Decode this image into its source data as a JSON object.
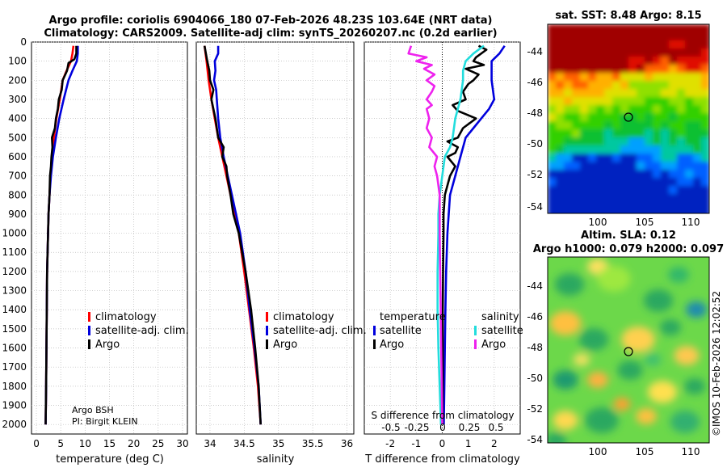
{
  "header": {
    "title_line1": "Argo profile: coriolis 6904066_180 07-Feb-2026 48.23S 103.64E (NRT data)",
    "title_line2": "Climatology: CARS2009. Satellite-adj clim: synTS_20260207.nc (0.2d earlier)"
  },
  "colors": {
    "climatology": "#ff0000",
    "satellite": "#0000dd",
    "argo": "#000000",
    "sat_s": "#22dddd",
    "argo_s": "#ee22ee"
  },
  "depth_axis": {
    "ticks": [
      0,
      100,
      200,
      300,
      400,
      500,
      600,
      700,
      800,
      900,
      1000,
      1100,
      1200,
      1300,
      1400,
      1500,
      1600,
      1700,
      1800,
      1900,
      2000
    ]
  },
  "chart_data": [
    {
      "type": "line",
      "xlabel": "temperature (deg C)",
      "xlim": [
        -1,
        31
      ],
      "xticks": [
        0,
        5,
        10,
        15,
        20,
        25,
        30
      ],
      "ylim": [
        0,
        2050
      ],
      "legend": [
        "climatology",
        "satellite-adj. clim.",
        "Argo"
      ],
      "credit": [
        "Argo BSH",
        "PI: Birgit KLEIN"
      ],
      "series": [
        {
          "name": "climatology",
          "color": "#ff0000",
          "points": [
            [
              7.6,
              20
            ],
            [
              7.4,
              60
            ],
            [
              7.1,
              100
            ],
            [
              6.2,
              150
            ],
            [
              5.4,
              200
            ],
            [
              4.8,
              300
            ],
            [
              4.1,
              400
            ],
            [
              3.6,
              500
            ],
            [
              3.2,
              600
            ],
            [
              2.9,
              700
            ],
            [
              2.7,
              800
            ],
            [
              2.5,
              900
            ],
            [
              2.4,
              1000
            ],
            [
              2.2,
              1200
            ],
            [
              2.1,
              1500
            ],
            [
              2.0,
              1800
            ],
            [
              1.9,
              2000
            ]
          ]
        },
        {
          "name": "satellite-adj. clim.",
          "color": "#0000dd",
          "points": [
            [
              8.5,
              20
            ],
            [
              8.5,
              60
            ],
            [
              8.3,
              100
            ],
            [
              7.4,
              150
            ],
            [
              6.6,
              200
            ],
            [
              5.6,
              300
            ],
            [
              4.7,
              400
            ],
            [
              4.0,
              500
            ],
            [
              3.4,
              600
            ],
            [
              3.0,
              700
            ],
            [
              2.7,
              800
            ],
            [
              2.5,
              900
            ],
            [
              2.4,
              1000
            ],
            [
              2.2,
              1200
            ],
            [
              2.1,
              1500
            ],
            [
              2.0,
              1800
            ],
            [
              1.9,
              2000
            ]
          ]
        },
        {
          "name": "Argo",
          "color": "#000000",
          "points": [
            [
              8.2,
              20
            ],
            [
              8.2,
              60
            ],
            [
              7.8,
              90
            ],
            [
              6.6,
              110
            ],
            [
              6.3,
              150
            ],
            [
              5.4,
              200
            ],
            [
              5.2,
              250
            ],
            [
              4.6,
              300
            ],
            [
              4.4,
              350
            ],
            [
              4.0,
              400
            ],
            [
              3.8,
              450
            ],
            [
              3.2,
              500
            ],
            [
              3.3,
              550
            ],
            [
              3.1,
              600
            ],
            [
              3.0,
              650
            ],
            [
              2.8,
              700
            ],
            [
              2.7,
              800
            ],
            [
              2.5,
              900
            ],
            [
              2.4,
              1000
            ],
            [
              2.2,
              1200
            ],
            [
              2.1,
              1500
            ],
            [
              2.0,
              1800
            ],
            [
              1.9,
              2000
            ]
          ]
        }
      ]
    },
    {
      "type": "line",
      "xlabel": "salinity",
      "xlim": [
        33.8,
        36.1
      ],
      "xticks": [
        34,
        34.5,
        35,
        35.5,
        36
      ],
      "xticklabels": [
        "34",
        "34.5",
        "35",
        "35.5",
        "36"
      ],
      "ylim": [
        0,
        2050
      ],
      "legend": [
        "climatology",
        "satellite-adj. clim.",
        "Argo"
      ],
      "series": [
        {
          "name": "climatology",
          "color": "#ff0000",
          "points": [
            [
              33.92,
              20
            ],
            [
              33.95,
              100
            ],
            [
              33.98,
              200
            ],
            [
              34.02,
              300
            ],
            [
              34.07,
              400
            ],
            [
              34.12,
              500
            ],
            [
              34.18,
              600
            ],
            [
              34.24,
              700
            ],
            [
              34.3,
              800
            ],
            [
              34.36,
              900
            ],
            [
              34.42,
              1000
            ],
            [
              34.5,
              1200
            ],
            [
              34.57,
              1400
            ],
            [
              34.64,
              1600
            ],
            [
              34.7,
              1800
            ],
            [
              34.74,
              2000
            ]
          ]
        },
        {
          "name": "satellite-adj. clim.",
          "color": "#0000dd",
          "points": [
            [
              34.12,
              20
            ],
            [
              34.12,
              60
            ],
            [
              34.07,
              100
            ],
            [
              34.08,
              150
            ],
            [
              34.06,
              200
            ],
            [
              34.09,
              250
            ],
            [
              34.1,
              300
            ],
            [
              34.12,
              400
            ],
            [
              34.15,
              500
            ],
            [
              34.2,
              600
            ],
            [
              34.26,
              700
            ],
            [
              34.32,
              800
            ],
            [
              34.38,
              900
            ],
            [
              34.44,
              1000
            ],
            [
              34.52,
              1200
            ],
            [
              34.58,
              1400
            ],
            [
              34.65,
              1600
            ],
            [
              34.71,
              1800
            ],
            [
              34.74,
              2000
            ]
          ]
        },
        {
          "name": "Argo",
          "color": "#000000",
          "points": [
            [
              33.92,
              20
            ],
            [
              33.96,
              100
            ],
            [
              33.99,
              150
            ],
            [
              34.0,
              200
            ],
            [
              34.05,
              250
            ],
            [
              34.02,
              300
            ],
            [
              34.08,
              400
            ],
            [
              34.1,
              450
            ],
            [
              34.12,
              500
            ],
            [
              34.2,
              550
            ],
            [
              34.18,
              600
            ],
            [
              34.24,
              650
            ],
            [
              34.25,
              700
            ],
            [
              34.3,
              800
            ],
            [
              34.34,
              900
            ],
            [
              34.42,
              1000
            ],
            [
              34.52,
              1200
            ],
            [
              34.6,
              1400
            ],
            [
              34.66,
              1600
            ],
            [
              34.71,
              1800
            ],
            [
              34.74,
              2000
            ]
          ]
        }
      ]
    },
    {
      "type": "line",
      "xlabel": "T difference from climatology",
      "xlim": [
        -3,
        3
      ],
      "xticks": [
        -2,
        -1,
        0,
        1,
        2
      ],
      "xticklabels": [
        "-2",
        "-1",
        "0",
        "1",
        "2"
      ],
      "secondary_label": "S difference from climatology",
      "secondary_ticks": [
        "-0.5",
        "-0.25",
        "0",
        "0.25",
        "0.5"
      ],
      "ylim": [
        0,
        2050
      ],
      "legend_t_title": "temperature",
      "legend_s_title": "salinity",
      "legend_t": [
        "satellite",
        "Argo"
      ],
      "legend_s": [
        "satellite",
        "Argo"
      ],
      "series": [
        {
          "name": "T satellite",
          "color": "#0000dd",
          "points": [
            [
              2.4,
              20
            ],
            [
              2.2,
              60
            ],
            [
              1.9,
              100
            ],
            [
              1.9,
              150
            ],
            [
              1.9,
              200
            ],
            [
              2.0,
              300
            ],
            [
              1.8,
              350
            ],
            [
              1.5,
              400
            ],
            [
              1.2,
              450
            ],
            [
              0.9,
              500
            ],
            [
              0.7,
              600
            ],
            [
              0.5,
              700
            ],
            [
              0.3,
              800
            ],
            [
              0.25,
              900
            ],
            [
              0.2,
              1000
            ],
            [
              0.15,
              1200
            ],
            [
              0.12,
              1400
            ],
            [
              0.1,
              1600
            ],
            [
              0.08,
              1800
            ],
            [
              0.06,
              2000
            ]
          ]
        },
        {
          "name": "T Argo",
          "color": "#000000",
          "points": [
            [
              1.4,
              20
            ],
            [
              1.7,
              40
            ],
            [
              1.3,
              80
            ],
            [
              1.2,
              100
            ],
            [
              1.6,
              120
            ],
            [
              0.9,
              140
            ],
            [
              1.4,
              170
            ],
            [
              1.2,
              200
            ],
            [
              1.0,
              220
            ],
            [
              0.8,
              260
            ],
            [
              0.9,
              300
            ],
            [
              0.4,
              330
            ],
            [
              0.6,
              360
            ],
            [
              1.3,
              400
            ],
            [
              0.8,
              450
            ],
            [
              0.6,
              500
            ],
            [
              0.2,
              520
            ],
            [
              0.6,
              550
            ],
            [
              0.5,
              580
            ],
            [
              0.2,
              600
            ],
            [
              0.5,
              650
            ],
            [
              0.3,
              700
            ],
            [
              0.1,
              800
            ],
            [
              0.05,
              900
            ],
            [
              0.05,
              1000
            ],
            [
              0.03,
              1200
            ],
            [
              0.02,
              1400
            ],
            [
              0.02,
              1600
            ],
            [
              0.02,
              1800
            ],
            [
              0.01,
              2000
            ]
          ]
        },
        {
          "name": "S satellite",
          "color": "#22dddd",
          "points": [
            [
              1.6,
              20
            ],
            [
              1.2,
              60
            ],
            [
              0.9,
              100
            ],
            [
              0.8,
              150
            ],
            [
              0.8,
              200
            ],
            [
              0.7,
              300
            ],
            [
              0.5,
              400
            ],
            [
              0.4,
              500
            ],
            [
              0.3,
              550
            ],
            [
              0.1,
              600
            ],
            [
              0.0,
              700
            ],
            [
              -0.1,
              800
            ],
            [
              -0.15,
              900
            ],
            [
              -0.15,
              1000
            ],
            [
              -0.18,
              1200
            ],
            [
              -0.18,
              1400
            ],
            [
              -0.15,
              1600
            ],
            [
              -0.1,
              1800
            ],
            [
              -0.05,
              2000
            ]
          ]
        },
        {
          "name": "S Argo",
          "color": "#ee22ee",
          "points": [
            [
              -1.2,
              20
            ],
            [
              -1.3,
              60
            ],
            [
              -0.6,
              80
            ],
            [
              -1.0,
              100
            ],
            [
              -0.4,
              120
            ],
            [
              -0.7,
              140
            ],
            [
              -0.3,
              170
            ],
            [
              -0.6,
              200
            ],
            [
              -0.3,
              230
            ],
            [
              -0.4,
              260
            ],
            [
              -0.6,
              300
            ],
            [
              -0.4,
              330
            ],
            [
              -0.6,
              350
            ],
            [
              -0.5,
              400
            ],
            [
              -0.6,
              450
            ],
            [
              -0.4,
              500
            ],
            [
              -0.5,
              550
            ],
            [
              -0.2,
              600
            ],
            [
              -0.3,
              650
            ],
            [
              -0.2,
              700
            ],
            [
              -0.1,
              800
            ],
            [
              -0.1,
              900
            ],
            [
              -0.1,
              1000
            ],
            [
              -0.08,
              1200
            ],
            [
              -0.06,
              1400
            ],
            [
              -0.04,
              1600
            ],
            [
              -0.02,
              1800
            ],
            [
              0.0,
              2000
            ]
          ]
        }
      ]
    },
    {
      "type": "heatmap",
      "title": "sat. SST: 8.48 Argo: 8.15",
      "xticks": [
        "100",
        "105",
        "110"
      ],
      "yticks": [
        "-44",
        "-46",
        "-48",
        "-50",
        "-52",
        "-54"
      ],
      "marker": [
        103.64,
        -48.23
      ],
      "palette": [
        "#0020c0",
        "#0060ff",
        "#00a0ff",
        "#00c8a0",
        "#10c030",
        "#30d000",
        "#90e000",
        "#e0e000",
        "#ffb000",
        "#ff6000",
        "#e01000",
        "#a00000"
      ]
    },
    {
      "type": "heatmap",
      "title_line1": "Altim. SLA: 0.12",
      "title_line2": "Argo h1000: 0.079 h2000: 0.097",
      "xticks": [
        "100",
        "105",
        "110"
      ],
      "yticks": [
        "-44",
        "-46",
        "-48",
        "-50",
        "-52",
        "-54"
      ],
      "marker": [
        103.64,
        -48.23
      ]
    }
  ],
  "footer": {
    "stamp": "©IMOS 10-Feb-2026 12:02:52"
  }
}
